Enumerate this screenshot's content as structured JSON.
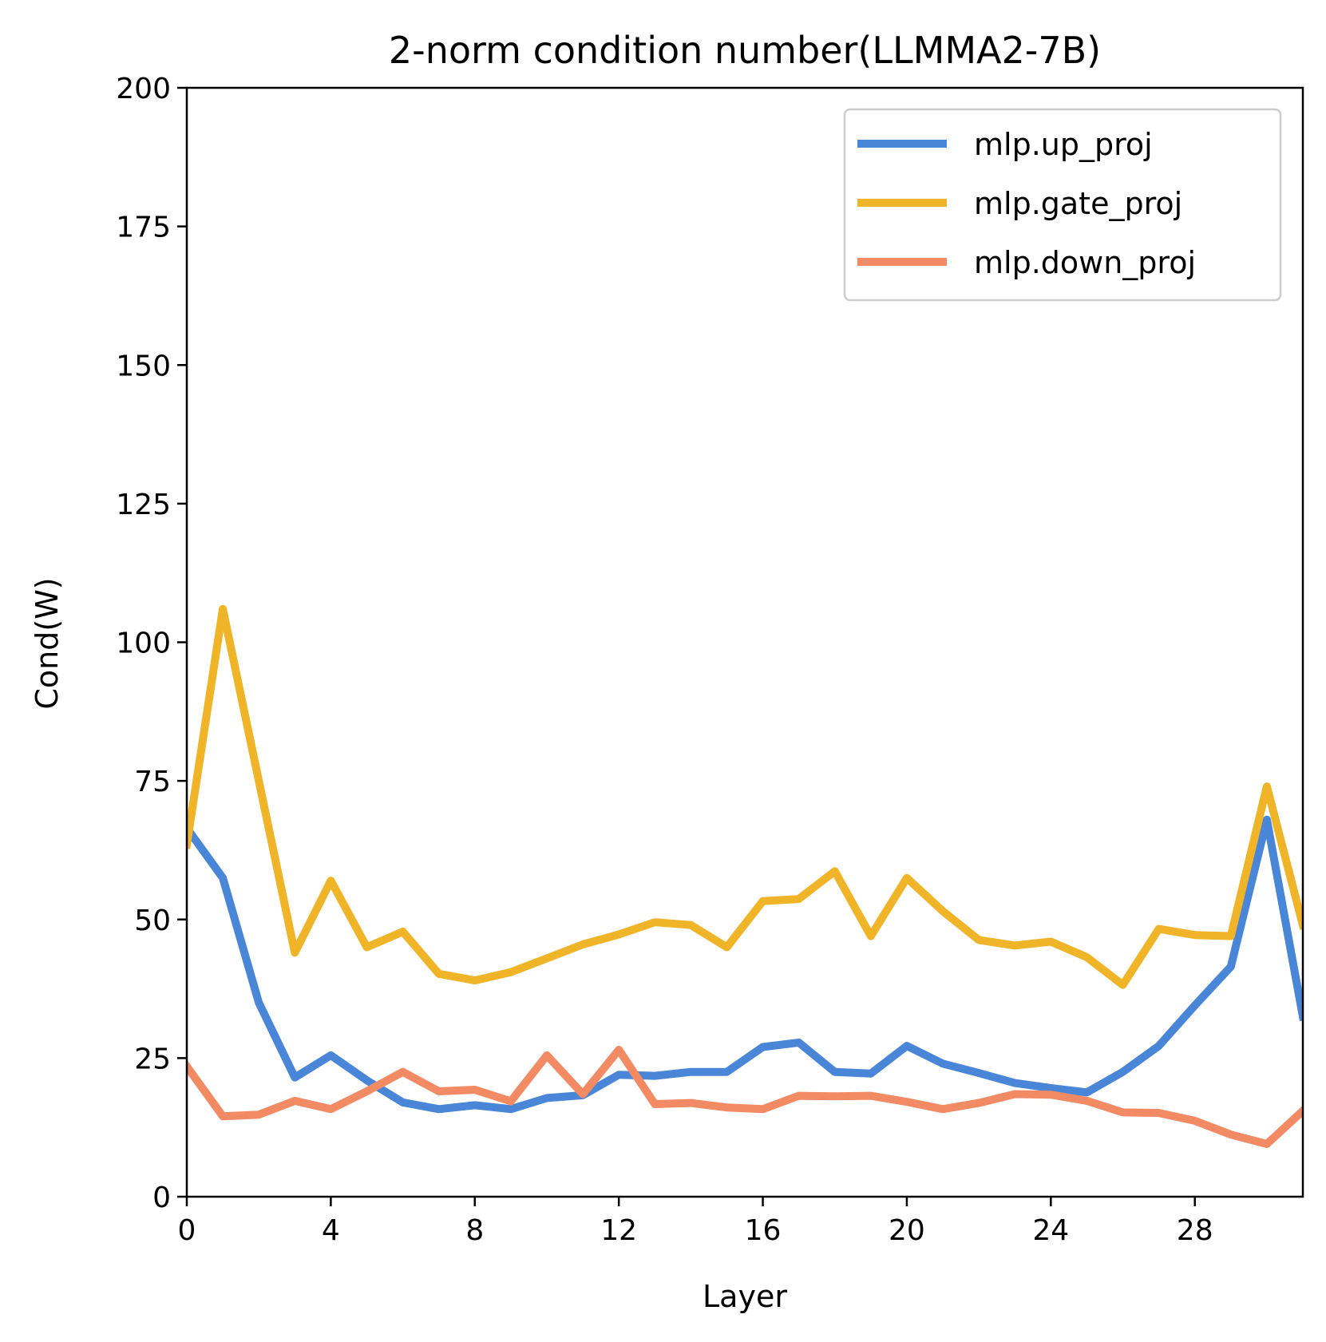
{
  "chart_data": {
    "type": "line",
    "title": "2-norm condition number(LLMMA2-7B)",
    "xlabel": "Layer",
    "ylabel": "Cond(W)",
    "xlim": [
      0,
      31
    ],
    "ylim": [
      0,
      200
    ],
    "xticks": [
      0,
      4,
      8,
      12,
      16,
      20,
      24,
      28
    ],
    "yticks": [
      0,
      25,
      50,
      75,
      100,
      125,
      150,
      175,
      200
    ],
    "legend_position": "top-right",
    "grid": false,
    "x": [
      0,
      1,
      2,
      3,
      4,
      5,
      6,
      7,
      8,
      9,
      10,
      11,
      12,
      13,
      14,
      15,
      16,
      17,
      18,
      19,
      20,
      21,
      22,
      23,
      24,
      25,
      26,
      27,
      28,
      29,
      30,
      31
    ],
    "series": [
      {
        "name": "mlp.up_proj",
        "color": "#4a86d8",
        "values": [
          66.5,
          57.5,
          35,
          21.5,
          25.5,
          21,
          17,
          15.8,
          16.5,
          15.8,
          17.8,
          18.3,
          22,
          21.8,
          22.5,
          22.5,
          27,
          27.8,
          22.5,
          22.2,
          27.2,
          24,
          22.3,
          20.5,
          19.6,
          18.8,
          22.5,
          27.2,
          34.5,
          41.5,
          68,
          32.5
        ]
      },
      {
        "name": "mlp.gate_proj",
        "color": "#f0b429",
        "values": [
          63.5,
          106,
          75,
          44,
          57,
          45,
          47.8,
          40.2,
          39,
          40.5,
          43,
          45.5,
          47.3,
          49.5,
          49,
          45,
          53.3,
          53.7,
          58.7,
          47,
          57.5,
          51.5,
          46.3,
          45.3,
          46,
          43.2,
          38.2,
          48.3,
          47.2,
          47,
          74,
          49
        ]
      },
      {
        "name": "mlp.down_proj",
        "color": "#f28a64",
        "values": [
          23.5,
          14.5,
          14.8,
          17.3,
          15.8,
          19,
          22.5,
          19,
          19.3,
          17.2,
          25.5,
          18.5,
          26.5,
          16.7,
          16.9,
          16.1,
          15.8,
          18.2,
          18.1,
          18.2,
          17.1,
          15.8,
          16.9,
          18.5,
          18.4,
          17.3,
          15.2,
          15.1,
          13.7,
          11.2,
          9.5,
          15.5
        ]
      }
    ]
  }
}
